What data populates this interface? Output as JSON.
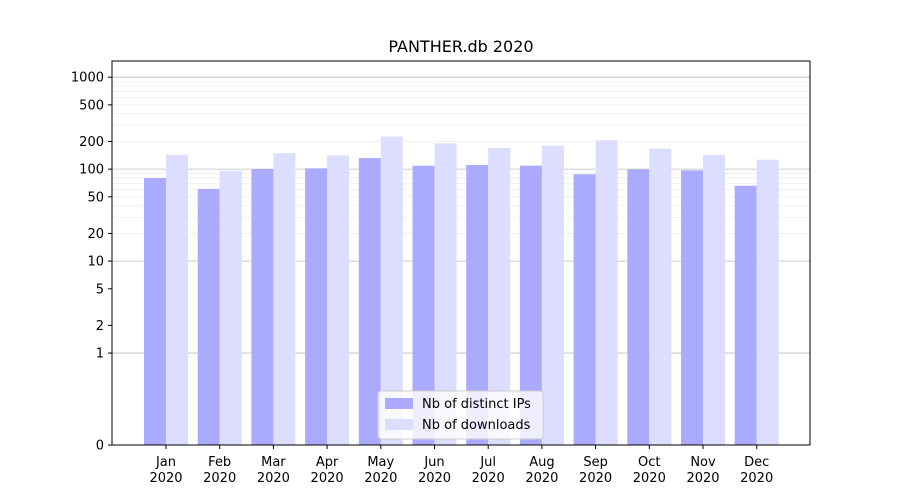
{
  "chart_data": {
    "type": "bar",
    "title": "PANTHER.db 2020",
    "xlabel": "",
    "ylabel": "",
    "yscale": "symlog",
    "ylim": [
      0,
      1500
    ],
    "grid": {
      "y": true,
      "x": false
    },
    "legend_position": "lower-center",
    "categories": [
      {
        "month": "Jan",
        "year": "2020"
      },
      {
        "month": "Feb",
        "year": "2020"
      },
      {
        "month": "Mar",
        "year": "2020"
      },
      {
        "month": "Apr",
        "year": "2020"
      },
      {
        "month": "May",
        "year": "2020"
      },
      {
        "month": "Jun",
        "year": "2020"
      },
      {
        "month": "Jul",
        "year": "2020"
      },
      {
        "month": "Aug",
        "year": "2020"
      },
      {
        "month": "Sep",
        "year": "2020"
      },
      {
        "month": "Oct",
        "year": "2020"
      },
      {
        "month": "Nov",
        "year": "2020"
      },
      {
        "month": "Dec",
        "year": "2020"
      }
    ],
    "y_ticks": [
      0,
      1,
      2,
      5,
      10,
      20,
      50,
      100,
      200,
      500,
      1000
    ],
    "series": [
      {
        "name": "Nb of distinct IPs",
        "color": "#aaaaff",
        "values": [
          80,
          61,
          100,
          102,
          132,
          109,
          111,
          109,
          88,
          99,
          97,
          66
        ]
      },
      {
        "name": "Nb of downloads",
        "color": "#ddddff",
        "values": [
          143,
          96,
          149,
          141,
          226,
          191,
          170,
          180,
          206,
          167,
          143,
          127
        ]
      }
    ]
  }
}
